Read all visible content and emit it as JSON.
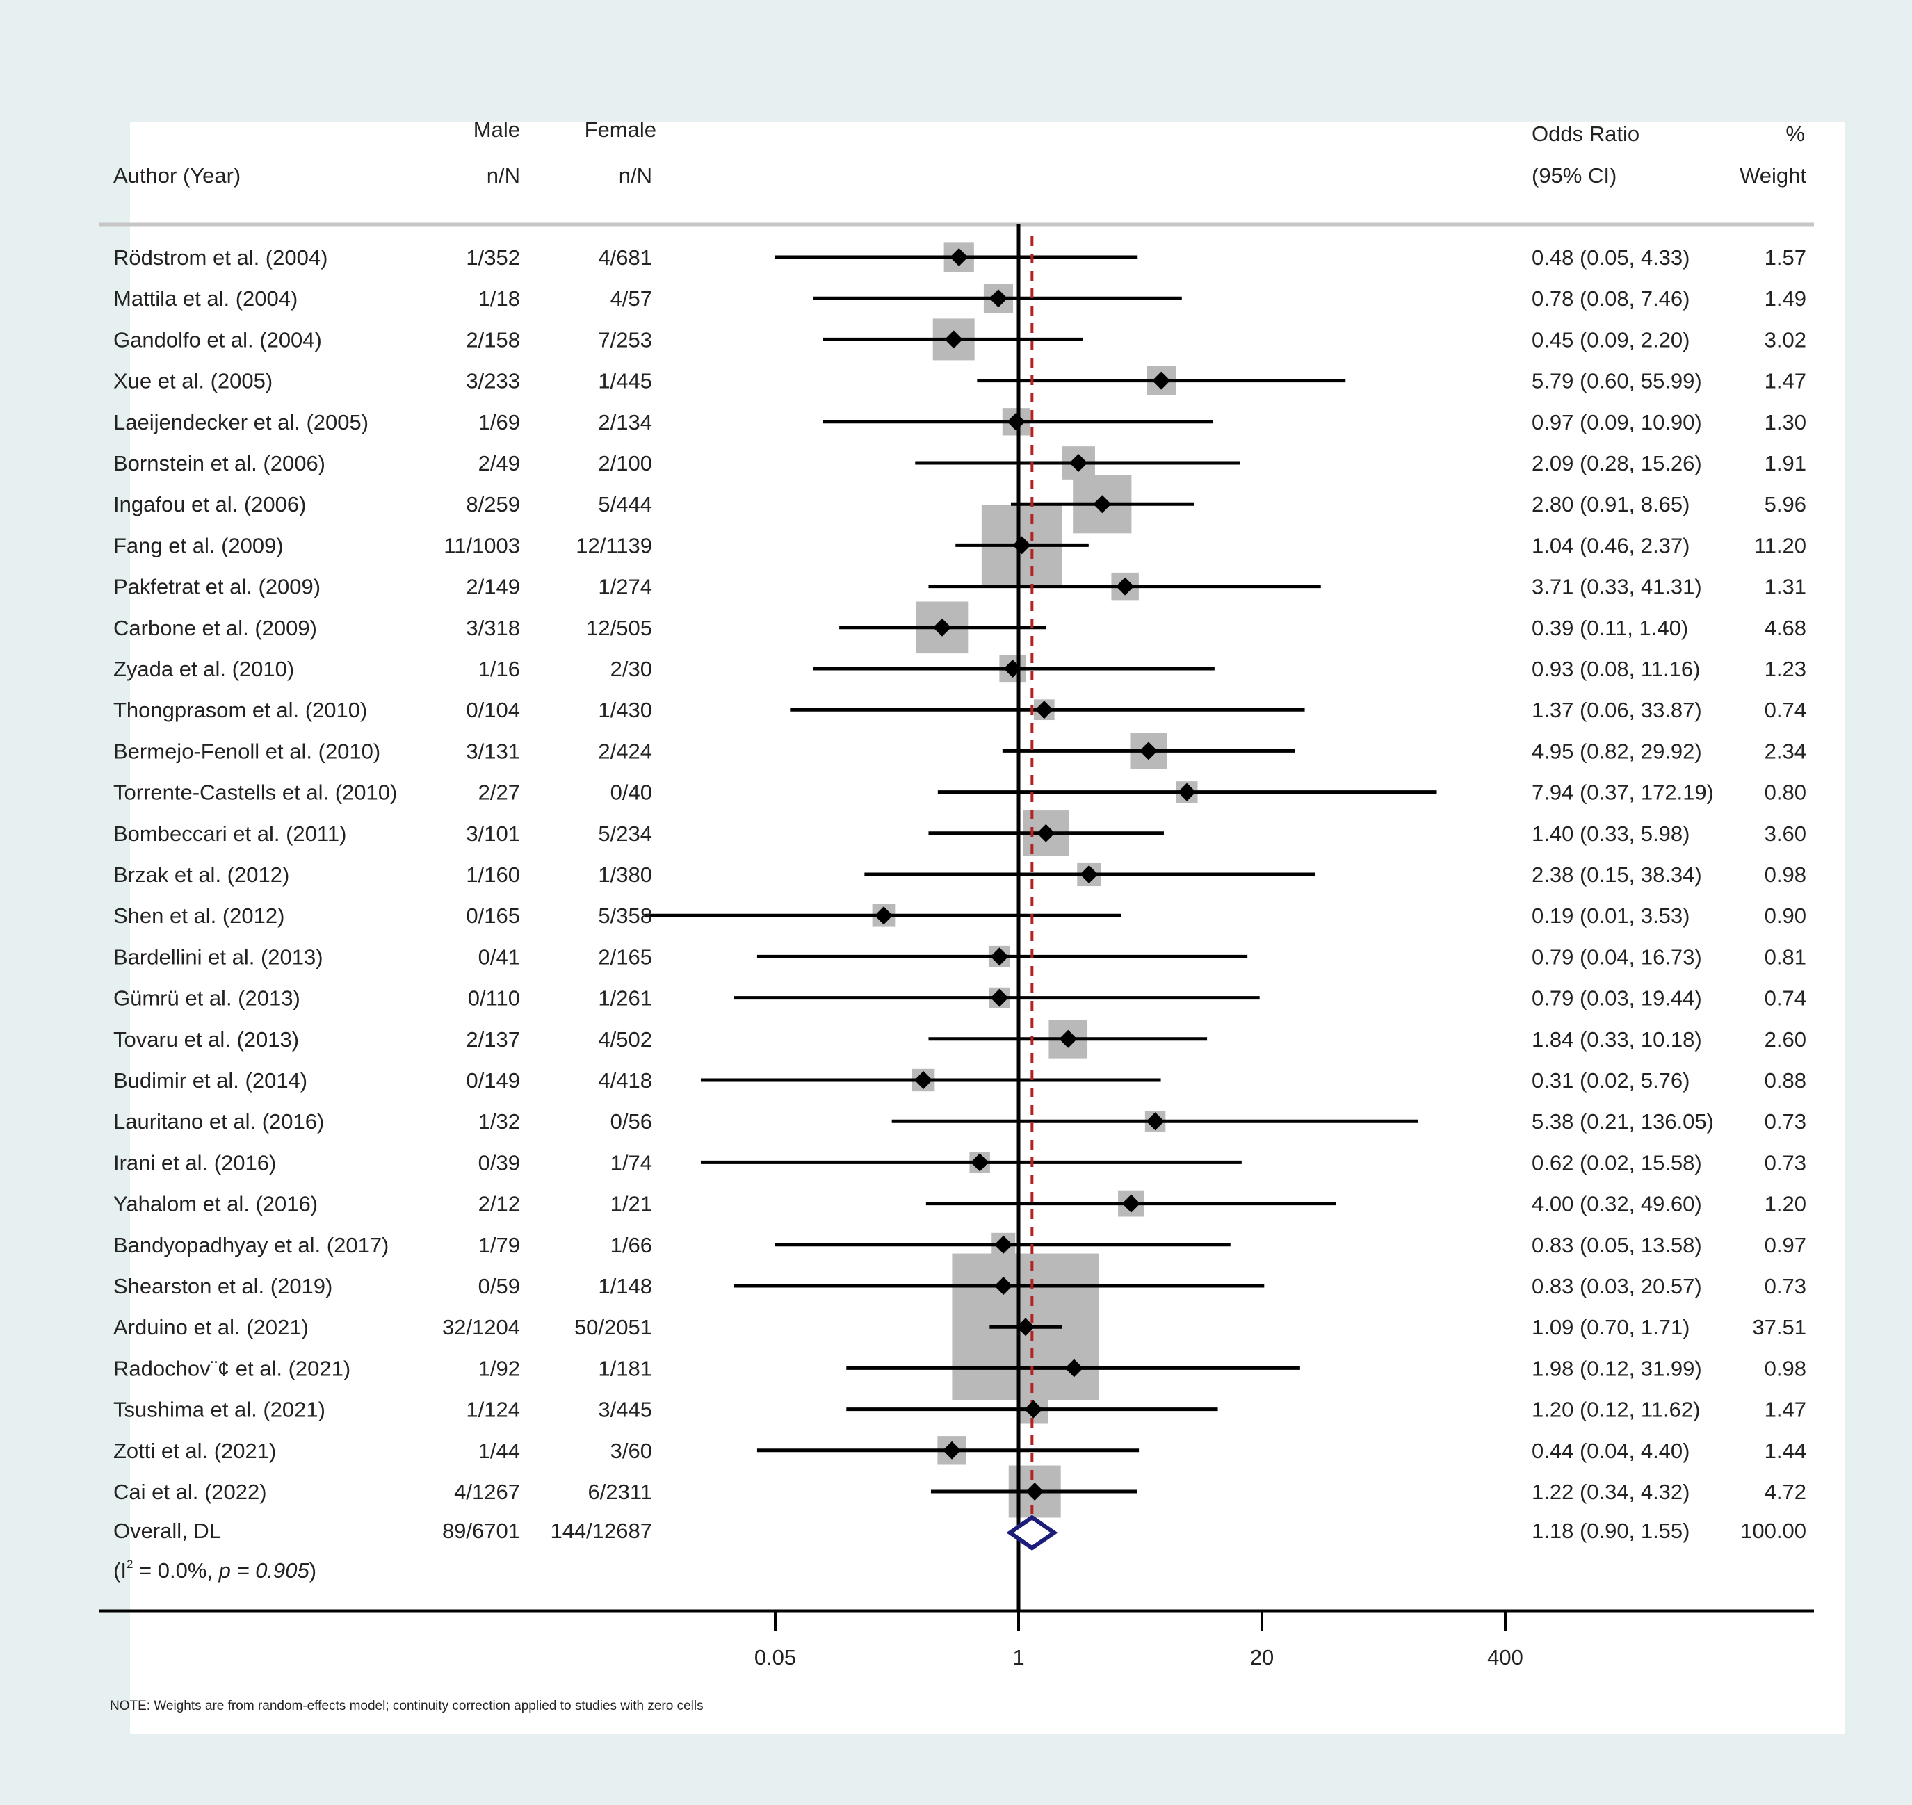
{
  "colors": {
    "background": "#e6f0f0",
    "plot_background": "#ffffff",
    "weight_box": "#b9b9b9",
    "point": "#000000",
    "overall_diamond": "#1c1c7a",
    "null_line": "#000000",
    "overall_line": "#b22222"
  },
  "chart_data": {
    "type": "forest",
    "headers": {
      "author_line2": "Author (Year)",
      "male_line1": "Male",
      "male_line2": "n/N",
      "female_line1": "Female",
      "female_line2": "n/N",
      "or_line1": "Odds Ratio",
      "or_line2": "(95% CI)",
      "weight_line1": "%",
      "weight_line2": "Weight"
    },
    "x_scale": "log",
    "x_ticks": [
      0.05,
      1,
      20,
      400
    ],
    "x_tick_labels": [
      "0.05",
      "1",
      "20",
      "400"
    ],
    "null_value": 1,
    "studies": [
      {
        "author": "Rödstrom et al. (2004)",
        "male": "1/352",
        "female": "4/681",
        "or": 0.48,
        "lo": 0.05,
        "hi": 4.33,
        "ci_text": "0.48 (0.05, 4.33)",
        "weight": 1.57,
        "weight_text": "1.57"
      },
      {
        "author": "Mattila et al. (2004)",
        "male": "1/18",
        "female": "4/57",
        "or": 0.78,
        "lo": 0.08,
        "hi": 7.46,
        "ci_text": "0.78 (0.08, 7.46)",
        "weight": 1.49,
        "weight_text": "1.49"
      },
      {
        "author": "Gandolfo et al. (2004)",
        "male": "2/158",
        "female": "7/253",
        "or": 0.45,
        "lo": 0.09,
        "hi": 2.2,
        "ci_text": "0.45 (0.09, 2.20)",
        "weight": 3.02,
        "weight_text": "3.02"
      },
      {
        "author": "Xue et al. (2005)",
        "male": "3/233",
        "female": "1/445",
        "or": 5.79,
        "lo": 0.6,
        "hi": 55.99,
        "ci_text": "5.79 (0.60, 55.99)",
        "weight": 1.47,
        "weight_text": "1.47"
      },
      {
        "author": "Laeijendecker et al. (2005)",
        "male": "1/69",
        "female": "2/134",
        "or": 0.97,
        "lo": 0.09,
        "hi": 10.9,
        "ci_text": "0.97 (0.09, 10.90)",
        "weight": 1.3,
        "weight_text": "1.30"
      },
      {
        "author": "Bornstein et al. (2006)",
        "male": "2/49",
        "female": "2/100",
        "or": 2.09,
        "lo": 0.28,
        "hi": 15.26,
        "ci_text": "2.09 (0.28, 15.26)",
        "weight": 1.91,
        "weight_text": "1.91"
      },
      {
        "author": "Ingafou et al. (2006)",
        "male": "8/259",
        "female": "5/444",
        "or": 2.8,
        "lo": 0.91,
        "hi": 8.65,
        "ci_text": "2.80 (0.91, 8.65)",
        "weight": 5.96,
        "weight_text": "5.96"
      },
      {
        "author": "Fang et al. (2009)",
        "male": "11/1003",
        "female": "12/1139",
        "or": 1.04,
        "lo": 0.46,
        "hi": 2.37,
        "ci_text": "1.04 (0.46, 2.37)",
        "weight": 11.2,
        "weight_text": "11.20"
      },
      {
        "author": "Pakfetrat et al. (2009)",
        "male": "2/149",
        "female": "1/274",
        "or": 3.71,
        "lo": 0.33,
        "hi": 41.31,
        "ci_text": "3.71 (0.33, 41.31)",
        "weight": 1.31,
        "weight_text": "1.31"
      },
      {
        "author": "Carbone et al. (2009)",
        "male": "3/318",
        "female": "12/505",
        "or": 0.39,
        "lo": 0.11,
        "hi": 1.4,
        "ci_text": "0.39 (0.11, 1.40)",
        "weight": 4.68,
        "weight_text": "4.68"
      },
      {
        "author": "Zyada et al. (2010)",
        "male": "1/16",
        "female": "2/30",
        "or": 0.93,
        "lo": 0.08,
        "hi": 11.16,
        "ci_text": "0.93 (0.08, 11.16)",
        "weight": 1.23,
        "weight_text": "1.23"
      },
      {
        "author": "Thongprasom et al. (2010)",
        "male": "0/104",
        "female": "1/430",
        "or": 1.37,
        "lo": 0.06,
        "hi": 33.87,
        "ci_text": "1.37 (0.06, 33.87)",
        "weight": 0.74,
        "weight_text": "0.74"
      },
      {
        "author": "Bermejo-Fenoll et al. (2010)",
        "male": "3/131",
        "female": "2/424",
        "or": 4.95,
        "lo": 0.82,
        "hi": 29.92,
        "ci_text": "4.95 (0.82, 29.92)",
        "weight": 2.34,
        "weight_text": "2.34"
      },
      {
        "author": "Torrente-Castells et al. (2010)",
        "male": "2/27",
        "female": "0/40",
        "or": 7.94,
        "lo": 0.37,
        "hi": 172.19,
        "ci_text": "7.94 (0.37, 172.19)",
        "weight": 0.8,
        "weight_text": "0.80"
      },
      {
        "author": "Bombeccari et al. (2011)",
        "male": "3/101",
        "female": "5/234",
        "or": 1.4,
        "lo": 0.33,
        "hi": 5.98,
        "ci_text": "1.40 (0.33, 5.98)",
        "weight": 3.6,
        "weight_text": "3.60"
      },
      {
        "author": "Brzak et al. (2012)",
        "male": "1/160",
        "female": "1/380",
        "or": 2.38,
        "lo": 0.15,
        "hi": 38.34,
        "ci_text": "2.38 (0.15, 38.34)",
        "weight": 0.98,
        "weight_text": "0.98"
      },
      {
        "author": "Shen et al. (2012)",
        "male": "0/165",
        "female": "5/358",
        "or": 0.19,
        "lo": 0.01,
        "hi": 3.53,
        "ci_text": "0.19 (0.01, 3.53)",
        "weight": 0.9,
        "weight_text": "0.90"
      },
      {
        "author": "Bardellini et al. (2013)",
        "male": "0/41",
        "female": "2/165",
        "or": 0.79,
        "lo": 0.04,
        "hi": 16.73,
        "ci_text": "0.79 (0.04, 16.73)",
        "weight": 0.81,
        "weight_text": "0.81"
      },
      {
        "author": "Gümrü et al. (2013)",
        "male": "0/110",
        "female": "1/261",
        "or": 0.79,
        "lo": 0.03,
        "hi": 19.44,
        "ci_text": "0.79 (0.03, 19.44)",
        "weight": 0.74,
        "weight_text": "0.74"
      },
      {
        "author": "Tovaru et al. (2013)",
        "male": "2/137",
        "female": "4/502",
        "or": 1.84,
        "lo": 0.33,
        "hi": 10.18,
        "ci_text": "1.84 (0.33, 10.18)",
        "weight": 2.6,
        "weight_text": "2.60"
      },
      {
        "author": "Budimir et al. (2014)",
        "male": "0/149",
        "female": "4/418",
        "or": 0.31,
        "lo": 0.02,
        "hi": 5.76,
        "ci_text": "0.31 (0.02, 5.76)",
        "weight": 0.88,
        "weight_text": "0.88"
      },
      {
        "author": "Lauritano et al. (2016)",
        "male": "1/32",
        "female": "0/56",
        "or": 5.38,
        "lo": 0.21,
        "hi": 136.05,
        "ci_text": "5.38 (0.21, 136.05)",
        "weight": 0.73,
        "weight_text": "0.73"
      },
      {
        "author": "Irani et al. (2016)",
        "male": "0/39",
        "female": "1/74",
        "or": 0.62,
        "lo": 0.02,
        "hi": 15.58,
        "ci_text": "0.62 (0.02, 15.58)",
        "weight": 0.73,
        "weight_text": "0.73"
      },
      {
        "author": "Yahalom et al. (2016)",
        "male": "2/12",
        "female": "1/21",
        "or": 4.0,
        "lo": 0.32,
        "hi": 49.6,
        "ci_text": "4.00 (0.32, 49.60)",
        "weight": 1.2,
        "weight_text": "1.20"
      },
      {
        "author": "Bandyopadhyay et al. (2017)",
        "male": "1/79",
        "female": "1/66",
        "or": 0.83,
        "lo": 0.05,
        "hi": 13.58,
        "ci_text": "0.83 (0.05, 13.58)",
        "weight": 0.97,
        "weight_text": "0.97"
      },
      {
        "author": "Shearston et al. (2019)",
        "male": "0/59",
        "female": "1/148",
        "or": 0.83,
        "lo": 0.03,
        "hi": 20.57,
        "ci_text": "0.83 (0.03, 20.57)",
        "weight": 0.73,
        "weight_text": "0.73"
      },
      {
        "author": "Arduino et al. (2021)",
        "male": "32/1204",
        "female": "50/2051",
        "or": 1.09,
        "lo": 0.7,
        "hi": 1.71,
        "ci_text": "1.09 (0.70, 1.71)",
        "weight": 37.51,
        "weight_text": "37.51"
      },
      {
        "author": "Radochov¨¢ et al. (2021)",
        "male": "1/92",
        "female": "1/181",
        "or": 1.98,
        "lo": 0.12,
        "hi": 31.99,
        "ci_text": "1.98 (0.12, 31.99)",
        "weight": 0.98,
        "weight_text": "0.98"
      },
      {
        "author": "Tsushima et al. (2021)",
        "male": "1/124",
        "female": "3/445",
        "or": 1.2,
        "lo": 0.12,
        "hi": 11.62,
        "ci_text": "1.20 (0.12, 11.62)",
        "weight": 1.47,
        "weight_text": "1.47"
      },
      {
        "author": "Zotti et al. (2021)",
        "male": "1/44",
        "female": "3/60",
        "or": 0.44,
        "lo": 0.04,
        "hi": 4.4,
        "ci_text": "0.44 (0.04, 4.40)",
        "weight": 1.44,
        "weight_text": "1.44"
      },
      {
        "author": "Cai et al. (2022)",
        "male": "4/1267",
        "female": "6/2311",
        "or": 1.22,
        "lo": 0.34,
        "hi": 4.32,
        "ci_text": "1.22 (0.34, 4.32)",
        "weight": 4.72,
        "weight_text": "4.72"
      }
    ],
    "overall": {
      "label": "Overall, DL",
      "male": "89/6701",
      "female": "144/12687",
      "or": 1.18,
      "lo": 0.9,
      "hi": 1.55,
      "ci_text": "1.18 (0.90, 1.55)",
      "weight_text": "100.00"
    },
    "heterogeneity": {
      "prefix": "(I",
      "superscript": "2",
      "middle": " = 0.0%, ",
      "p_label": "p = 0.905",
      "suffix": ")"
    },
    "note": "NOTE: Weights are from random-effects model; continuity correction applied to studies with zero cells"
  }
}
